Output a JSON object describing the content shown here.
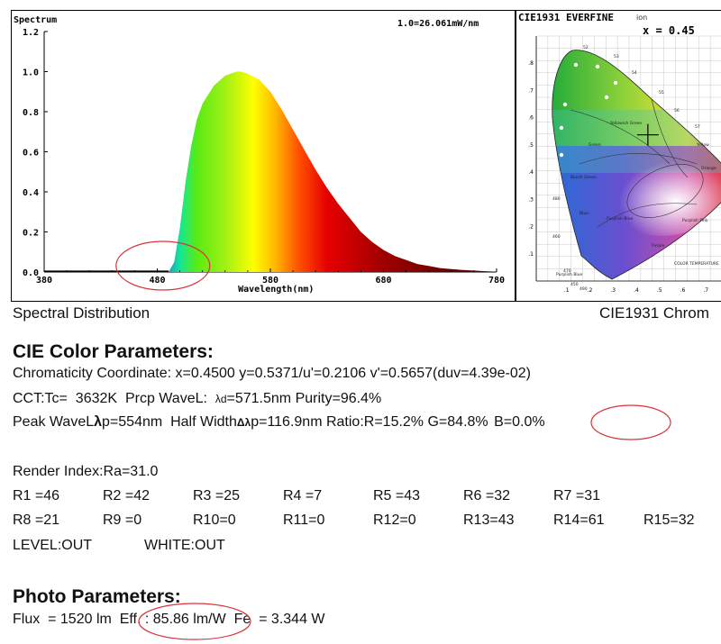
{
  "chart_data": [
    {
      "type": "area",
      "title": "Spectrum",
      "xlabel": "Wavelength(nm)",
      "ylabel": "",
      "annotation": "1.0=26.061mW/nm",
      "xlim": [
        380,
        780
      ],
      "ylim": [
        0,
        1.2
      ],
      "xticks": [
        "380",
        "480",
        "580",
        "680",
        "780"
      ],
      "yticks": [
        "0.0",
        "0.2",
        "0.4",
        "0.6",
        "0.8",
        "1.0",
        "1.2"
      ],
      "grid": false,
      "fill": "spectral-color-gradient",
      "x": [
        490,
        495,
        500,
        505,
        510,
        515,
        520,
        530,
        540,
        550,
        554,
        560,
        570,
        580,
        590,
        600,
        610,
        620,
        630,
        640,
        650,
        660,
        670,
        680,
        690,
        700,
        710,
        720,
        730,
        740,
        750,
        760,
        770,
        780
      ],
      "y": [
        0.0,
        0.05,
        0.22,
        0.45,
        0.63,
        0.76,
        0.84,
        0.93,
        0.98,
        1.0,
        1.0,
        0.99,
        0.96,
        0.9,
        0.81,
        0.71,
        0.61,
        0.51,
        0.42,
        0.34,
        0.27,
        0.2,
        0.15,
        0.11,
        0.08,
        0.06,
        0.04,
        0.03,
        0.02,
        0.015,
        0.01,
        0.007,
        0.004,
        0.002
      ],
      "highlight_ellipse_center_x": 485
    },
    {
      "type": "scatter",
      "title": "CIE1931 EVERFINE",
      "annotation": "x = 0.45",
      "marked_point": {
        "x": 0.45,
        "y": 0.5371
      },
      "xticks": [
        ".1",
        ".2",
        ".3",
        ".4",
        ".5",
        ".6",
        ".7"
      ],
      "yticks": [
        ".1",
        ".2",
        ".3",
        ".4",
        ".5",
        ".6",
        ".7",
        ".8"
      ],
      "inner_labels": [
        "52",
        "53",
        "54",
        "55",
        "56",
        "57",
        "Yellowish Green",
        "Green",
        "Bluish Green",
        "Blue",
        "Purplish Blue",
        "Purple",
        "Purplish Pink",
        "Yellow",
        "Orange",
        "COLOR TEMPERATURE",
        "Purplish Blue",
        "470",
        "460",
        "480",
        "490",
        "450"
      ]
    }
  ],
  "captions": {
    "spectral": "Spectral Distribution",
    "cie": "CIE1931 Chrom"
  },
  "cie_params": {
    "title": "CIE Color Parameters:",
    "line1": "Chromaticity Coordinate: x=0.4500 y=0.5371/u'=0.2106 v'=0.5657(duv=4.39e-02)",
    "line2_a": "CCT:Tc=  3632K  Prcp WaveL:  ",
    "line2_sym": "λd",
    "line2_b": "=571.5nm Purity=96.4%",
    "line3_a": "Peak WaveL",
    "line3_sym1": "λ",
    "line3_b": "p=554nm  Half Width",
    "line3_sym2": "Δλ",
    "line3_c": "p=116.9nm Ratio:R=15.2% G=84.8%",
    "line3_d": "B=0.0%"
  },
  "render_index": {
    "ra": "Render Index:Ra=31.0",
    "row1": [
      "R1 =46",
      "R2 =42",
      "R3 =25",
      "R4 =7",
      "R5 =43",
      "R6 =32",
      "R7 =31"
    ],
    "row2": [
      "R8 =21",
      "R9 =0",
      "R10=0",
      "R11=0",
      "R12=0",
      "R13=43",
      "R14=61",
      "R15=32"
    ],
    "level": "LEVEL:OUT",
    "white": "WHITE:OUT"
  },
  "photo_params": {
    "title": "Photo Parameters:",
    "flux": "Flux  = 1520 lm  ",
    "eff": "Eff. : 85.86 lm/W",
    "fe": "  Fe  = 3.344 W"
  },
  "colors": {
    "highlight": "#d9333a",
    "border": "#000000",
    "text": "#111111"
  }
}
